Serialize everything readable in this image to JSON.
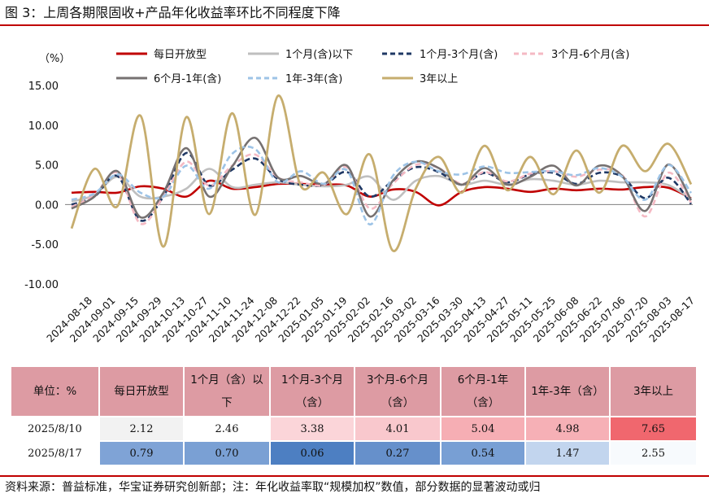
{
  "title": "图 3：上周各期限固收+产品年化收益率环比不同程度下降",
  "source": "资料来源：普益标准，华宝证券研究创新部；注：年化收益率取“规模加权”数值，部分数据的显著波动或归",
  "chart_data": {
    "type": "line",
    "ylabel": "（%）",
    "ylim": [
      -10,
      15
    ],
    "yticks": [
      "15.00",
      "10.00",
      "5.00",
      "0.00",
      "-5.00",
      "-10.00"
    ],
    "ytick_values": [
      15,
      10,
      5,
      0,
      -5,
      -10
    ],
    "xtick_labels": [
      "2024-08-18",
      "2024-09-01",
      "2024-09-15",
      "2024-09-29",
      "2024-10-13",
      "2024-10-27",
      "2024-11-10",
      "2024-11-24",
      "2024-12-08",
      "2024-12-22",
      "2025-01-05",
      "2025-01-19",
      "2025-02-02",
      "2025-02-16",
      "2025-03-02",
      "2025-03-16",
      "2025-03-30",
      "2025-04-13",
      "2025-04-27",
      "2025-05-11",
      "2025-05-25",
      "2025-06-08",
      "2025-06-22",
      "2025-07-06",
      "2025-07-20",
      "2025-08-03",
      "2025-08-17"
    ],
    "grid": false,
    "legend_position": "top",
    "series": [
      {
        "name": "每日开放型",
        "color": "#c00000",
        "dash": "solid",
        "width": 2.6,
        "values": [
          1.5,
          1.6,
          1.5,
          2.3,
          2.0,
          1.0,
          3.0,
          2.0,
          2.2,
          2.6,
          2.6,
          2.5,
          2.4,
          1.0,
          1.9,
          1.6,
          -0.1,
          1.6,
          2.2,
          2.0,
          1.6,
          2.0,
          1.8,
          2.0,
          1.9,
          2.2,
          2.12,
          0.79
        ]
      },
      {
        "name": "1个月(含)以下",
        "color": "#bfbfbf",
        "dash": "solid",
        "width": 2.6,
        "values": [
          0.4,
          1.2,
          3.5,
          1.0,
          1.0,
          2.0,
          4.5,
          2.2,
          2.5,
          2.8,
          2.5,
          2.3,
          2.5,
          3.5,
          0.6,
          3.0,
          3.6,
          2.5,
          3.0,
          2.5,
          3.2,
          3.0,
          2.5,
          3.0,
          2.8,
          2.8,
          2.46,
          0.7
        ]
      },
      {
        "name": "1个月-3个月(含)",
        "color": "#1f3864",
        "dash": "dash",
        "width": 2.6,
        "values": [
          0.0,
          1.0,
          3.6,
          -2.0,
          1.0,
          6.5,
          2.4,
          4.4,
          5.8,
          3.2,
          2.5,
          2.5,
          4.1,
          1.0,
          3.0,
          4.7,
          4.1,
          2.5,
          4.0,
          2.8,
          3.8,
          4.0,
          2.6,
          4.0,
          3.5,
          0.8,
          3.38,
          0.06
        ]
      },
      {
        "name": "3个月-6个月(含)",
        "color": "#f4b9c3",
        "dash": "dash",
        "width": 2.6,
        "values": [
          -0.3,
          1.2,
          4.0,
          -2.4,
          1.0,
          5.4,
          2.4,
          4.9,
          6.3,
          3.4,
          2.8,
          2.5,
          4.7,
          -0.5,
          2.6,
          5.0,
          4.6,
          2.6,
          4.1,
          2.9,
          3.9,
          4.2,
          3.5,
          4.4,
          3.7,
          -1.5,
          4.01,
          0.27
        ]
      },
      {
        "name": "6个月-1年(含)",
        "color": "#767171",
        "dash": "solid",
        "width": 2.6,
        "values": [
          -0.5,
          1.0,
          4.2,
          -1.6,
          1.5,
          7.1,
          1.0,
          4.8,
          8.4,
          3.4,
          3.6,
          2.6,
          4.9,
          -1.5,
          3.0,
          5.4,
          4.6,
          2.5,
          4.6,
          2.5,
          3.5,
          4.9,
          2.4,
          4.9,
          3.6,
          -0.8,
          5.04,
          0.54
        ]
      },
      {
        "name": "1年-3年(含)",
        "color": "#9dc3e6",
        "dash": "dash",
        "width": 2.6,
        "values": [
          0.6,
          1.4,
          3.8,
          1.5,
          1.0,
          4.9,
          2.0,
          6.4,
          7.0,
          2.8,
          4.2,
          2.6,
          4.3,
          -2.5,
          3.6,
          5.4,
          4.2,
          3.8,
          4.8,
          4.0,
          4.1,
          4.2,
          3.7,
          4.6,
          3.5,
          0.6,
          4.98,
          1.47
        ]
      },
      {
        "name": "3年以上",
        "color": "#c6ad6e",
        "dash": "solid",
        "width": 2.8,
        "values": [
          -3.0,
          4.5,
          -0.2,
          11.2,
          -5.3,
          11.0,
          -1.2,
          11.5,
          -1.3,
          13.7,
          2.3,
          4.0,
          -1.2,
          6.3,
          -5.8,
          2.0,
          6.0,
          1.5,
          7.4,
          1.8,
          6.0,
          1.3,
          6.8,
          1.5,
          7.4,
          4.2,
          7.65,
          2.55
        ]
      }
    ]
  },
  "table": {
    "headers": [
      "单位：%",
      "每日开放型",
      "1个月（含）以下",
      "1个月-3个月（含）",
      "3个月-6个月（含）",
      "6个月-1年（含）",
      "1年-3年（含）",
      "3年以上"
    ],
    "rows": [
      {
        "label": "2025/8/10",
        "values": [
          "2.12",
          "2.46",
          "3.38",
          "4.01",
          "5.04",
          "4.98",
          "7.65"
        ],
        "colors": [
          "#f2f2f2",
          "#ffffff",
          "#fbd5d9",
          "#f9c8cd",
          "#f6aeb4",
          "#f6b0b6",
          "#f0676e"
        ]
      },
      {
        "label": "2025/8/17",
        "values": [
          "0.79",
          "0.70",
          "0.06",
          "0.27",
          "0.54",
          "1.47",
          "2.55"
        ],
        "colors": [
          "#7fa3d6",
          "#7aa0d4",
          "#4d7fc2",
          "#6690cb",
          "#789fd4",
          "#c2d5ee",
          "#f7fafd"
        ]
      }
    ]
  }
}
